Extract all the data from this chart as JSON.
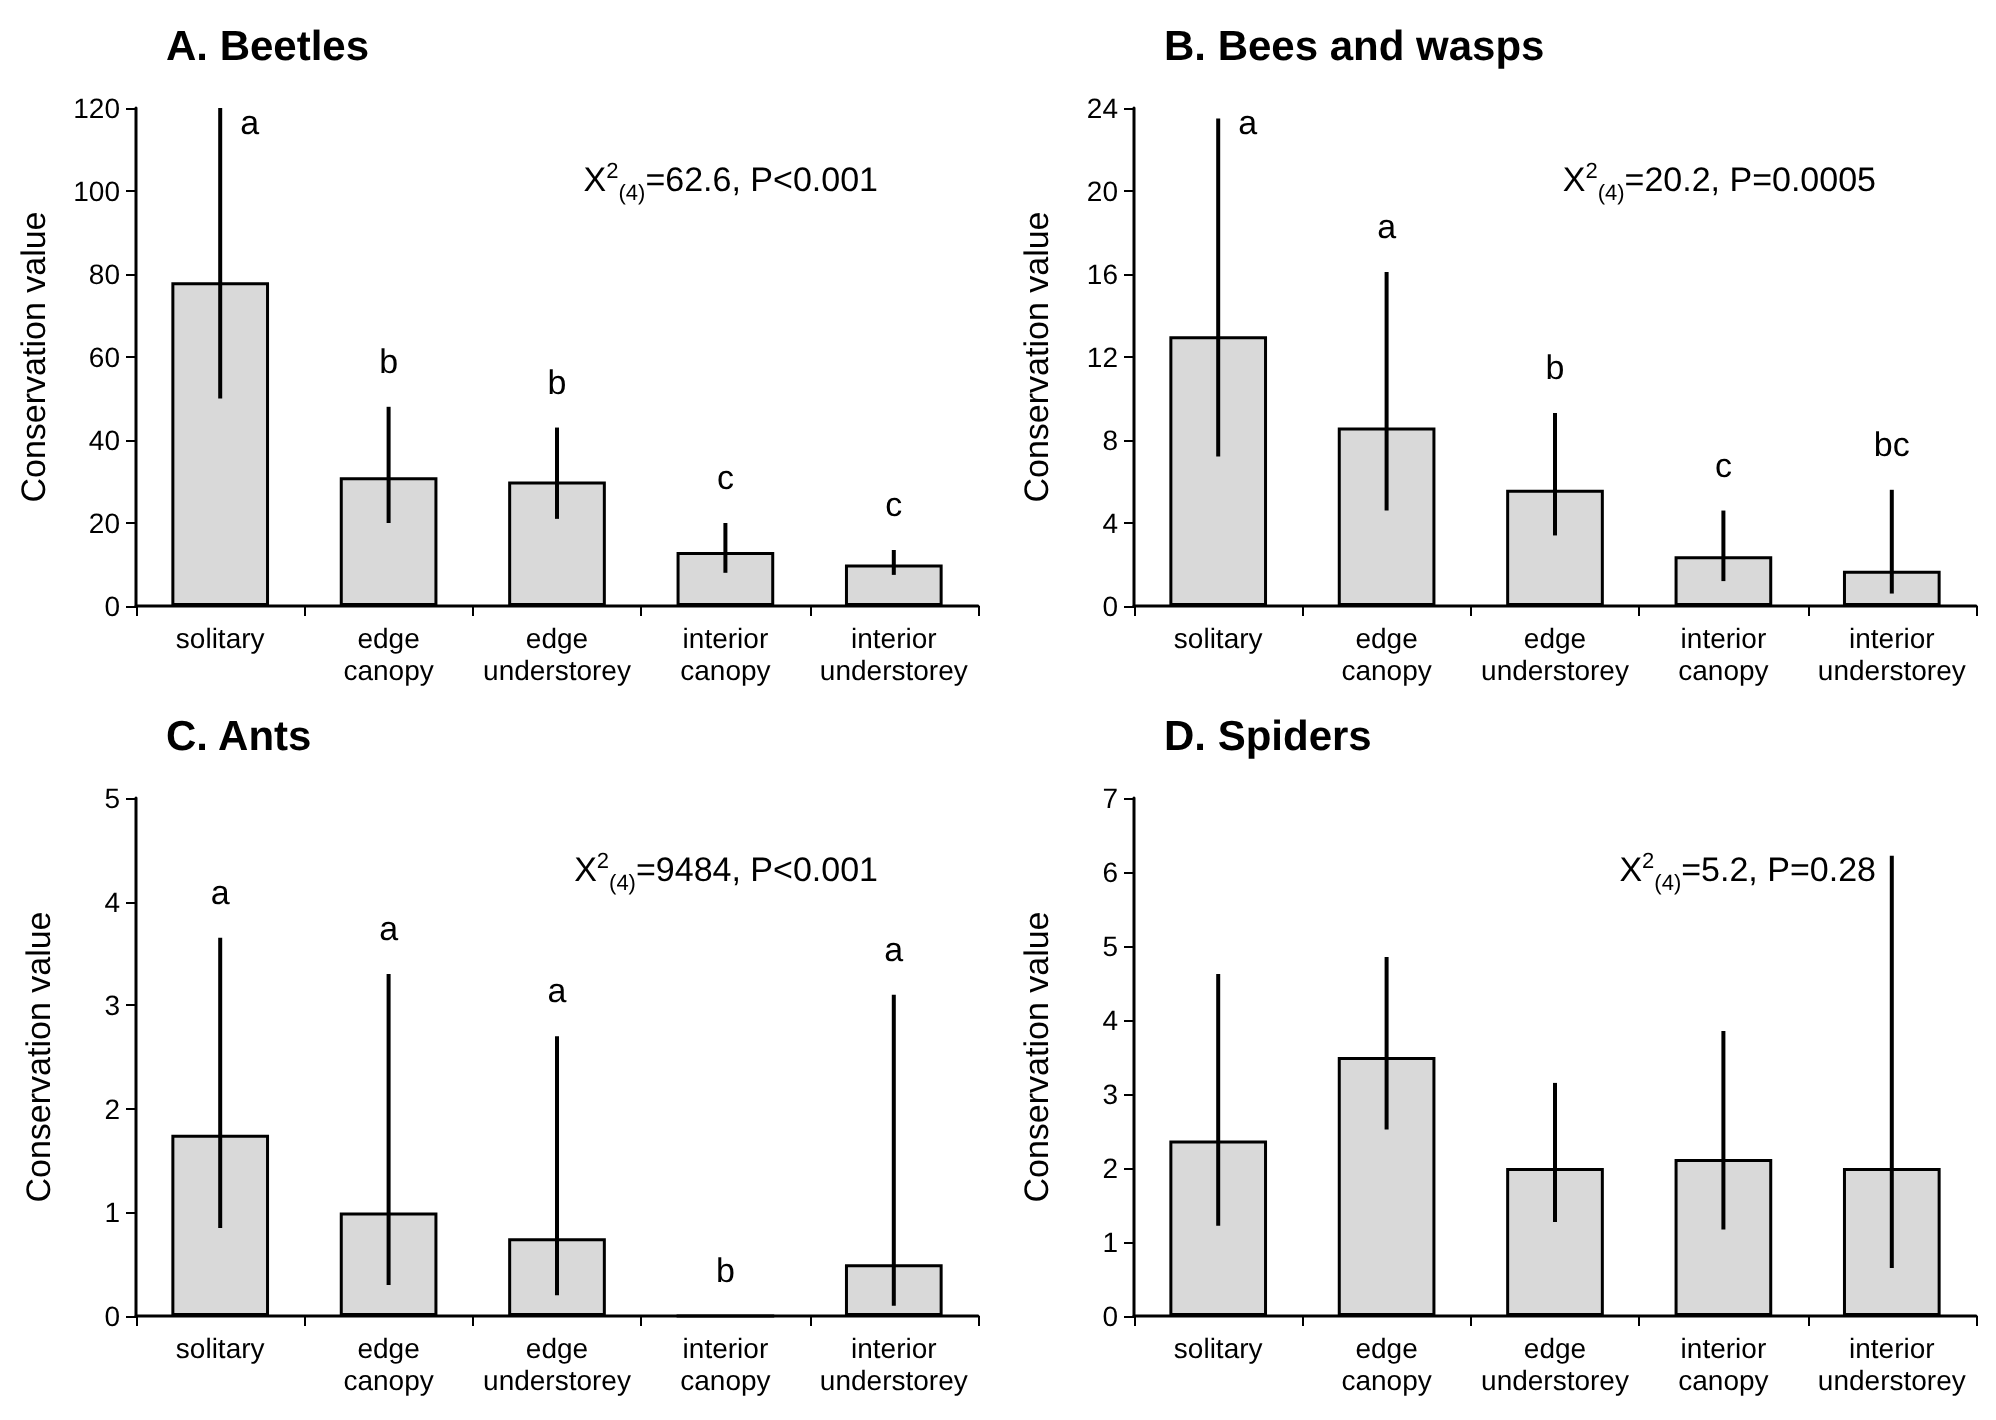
{
  "chart_data": [
    {
      "type": "bar",
      "title": "A. Beetles",
      "ylabel": "Conservation value",
      "categories": [
        "solitary",
        "edge canopy",
        "edge understorey",
        "interior canopy",
        "interior understorey"
      ],
      "values": [
        78,
        31,
        30,
        13,
        10
      ],
      "color": "#d9d9d9",
      "errors": [
        [
          50,
          120
        ],
        [
          20,
          48
        ],
        [
          21,
          43
        ],
        [
          8,
          20
        ],
        [
          7.5,
          13.5
        ]
      ],
      "ylim": [
        0,
        120
      ],
      "yticks": [
        0,
        20,
        40,
        60,
        80,
        100,
        120
      ],
      "annotations": [
        "Χ$^{2}$$_{(4)}$=62.6, P<0.001",
        "a",
        "b",
        "b",
        "c",
        "c"
      ]
    },
    {
      "type": "bar",
      "title": "B. Bees and wasps",
      "ylabel": "Conservation value",
      "categories": [
        "solitary",
        "edge canopy",
        "edge understorey",
        "interior canopy",
        "interior understorey"
      ],
      "values": [
        13,
        8.6,
        5.6,
        2.4,
        1.7
      ],
      "color": "#d9d9d9",
      "errors": [
        [
          7.2,
          23.5
        ],
        [
          4.6,
          16.1
        ],
        [
          3.4,
          9.3
        ],
        [
          1.2,
          4.6
        ],
        [
          0.6,
          5.6
        ]
      ],
      "ylim": [
        0,
        24
      ],
      "yticks": [
        0,
        4,
        8,
        12,
        16,
        20,
        24
      ],
      "annotations": [
        "Χ$^{2}$$_{(4)}$=20.2, P=0.0005",
        "a",
        "a",
        "b",
        "c",
        "bc"
      ]
    },
    {
      "type": "bar",
      "title": "C. Ants",
      "ylabel": "Conservation value",
      "categories": [
        "solitary",
        "edge canopy",
        "edge understorey",
        "interior canopy",
        "interior understorey"
      ],
      "values": [
        1.75,
        1.0,
        0.75,
        0,
        0.5
      ],
      "color": "#d9d9d9",
      "errors": [
        [
          0.85,
          3.65
        ],
        [
          0.3,
          3.3
        ],
        [
          0.2,
          2.7
        ],
        null,
        [
          0.1,
          3.1
        ]
      ],
      "ylim": [
        0,
        5
      ],
      "yticks": [
        0,
        1,
        2,
        3,
        4,
        5
      ],
      "annotations": [
        "Χ$^{2}$$_{(4)}$=9484, P<0.001",
        "a",
        "a",
        "a",
        "b",
        "a"
      ]
    },
    {
      "type": "bar",
      "title": "D. Spiders",
      "ylabel": "Conservation value",
      "categories": [
        "solitary",
        "edge canopy",
        "edge understorey",
        "interior canopy",
        "interior understorey"
      ],
      "values": [
        2.37,
        3.5,
        2.0,
        2.12,
        2.0
      ],
      "color": "#d9d9d9",
      "errors": [
        [
          1.22,
          4.62
        ],
        [
          2.52,
          4.85
        ],
        [
          1.27,
          3.15
        ],
        [
          1.17,
          3.85
        ],
        [
          0.65,
          6.22
        ]
      ],
      "ylim": [
        0,
        7
      ],
      "yticks": [
        0,
        1,
        2,
        3,
        4,
        5,
        6,
        7
      ],
      "annotations": [
        "Χ$^{2}$$_{(4)}$=5.2, P=0.28"
      ]
    }
  ]
}
